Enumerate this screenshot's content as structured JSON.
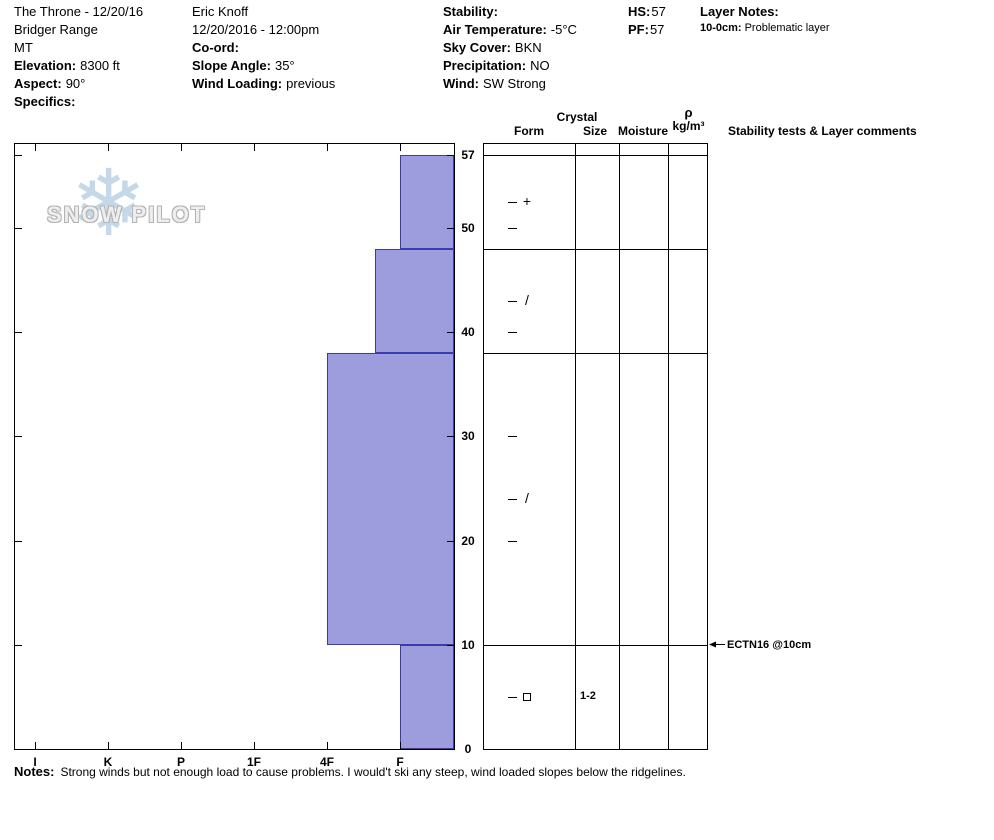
{
  "header": {
    "site": {
      "title": "The Throne - 12/20/16",
      "range": "Bridger Range",
      "state": "MT",
      "elevation_label": "Elevation:",
      "elevation": "8300 ft",
      "aspect_label": "Aspect:",
      "aspect": "90°",
      "specifics_label": "Specifics:"
    },
    "obs": {
      "observer": "Eric Knoff",
      "datetime": "12/20/2016 - 12:00pm",
      "coord_label": "Co-ord:",
      "slope_label": "Slope Angle:",
      "slope": "35°",
      "windload_label": "Wind Loading:",
      "windload": "previous"
    },
    "weather": {
      "stability_label": "Stability:",
      "airtemp_label": "Air Temperature:",
      "airtemp": "-5°C",
      "sky_label": "Sky Cover:",
      "sky": "BKN",
      "precip_label": "Precipitation:",
      "precip": "NO",
      "wind_label": "Wind:",
      "wind": "SW Strong"
    },
    "totals": {
      "hs_label": "HS:",
      "hs": "57",
      "pf_label": "PF:",
      "pf": "57"
    },
    "layer_notes": {
      "label": "Layer Notes:",
      "item_range": "10-0cm:",
      "item_text": "Problematic layer"
    }
  },
  "watermark": {
    "text": "SNOW PILOT",
    "snowflake": "❄"
  },
  "table": {
    "crystal": "Crystal",
    "form": "Form",
    "size": "Size",
    "moisture": "Moisture",
    "rho": "ρ",
    "rho_units": "kg/m³",
    "comments": "Stability tests & Layer comments"
  },
  "chart_data": {
    "type": "bar",
    "subtype": "snow-hardness-profile",
    "hardness_axis": {
      "labels": [
        "I",
        "K",
        "P",
        "1F",
        "4F",
        "F"
      ],
      "note": "hand hardness, hard (I) at left to soft (F) at right; bars grow leftward from soft edge"
    },
    "depth_axis": {
      "unit": "cm",
      "ticks": [
        0,
        10,
        20,
        30,
        40,
        50,
        57
      ],
      "max": 57
    },
    "layers": [
      {
        "top_cm": 57,
        "bottom_cm": 48,
        "hardness": "F",
        "hardness_index": 5,
        "form_glyph": "+",
        "grain_form": "PP",
        "size_mm": "",
        "moisture": ""
      },
      {
        "top_cm": 48,
        "bottom_cm": 38,
        "hardness": "F+",
        "hardness_index": 4.66,
        "form_glyph": "/",
        "grain_form": "DF",
        "size_mm": "",
        "moisture": ""
      },
      {
        "top_cm": 38,
        "bottom_cm": 10,
        "hardness": "4F",
        "hardness_index": 4,
        "form_glyph": "/",
        "grain_form": "DF",
        "size_mm": "",
        "moisture": ""
      },
      {
        "top_cm": 10,
        "bottom_cm": 0,
        "hardness": "F",
        "hardness_index": 5,
        "form_glyph": "square",
        "grain_form": "FC",
        "size_mm": "1-2",
        "moisture": ""
      }
    ],
    "annotations": [
      {
        "text": "ECTN16 @10cm",
        "depth_cm": 10,
        "arrow": "left"
      }
    ],
    "bar_color": "#9d9dde",
    "bar_border": "#3b3bb0"
  },
  "notes": {
    "label": "Notes:",
    "text": "Strong winds but not enough load to cause problems. I would't ski any steep, wind loaded slopes below the ridgelines."
  }
}
